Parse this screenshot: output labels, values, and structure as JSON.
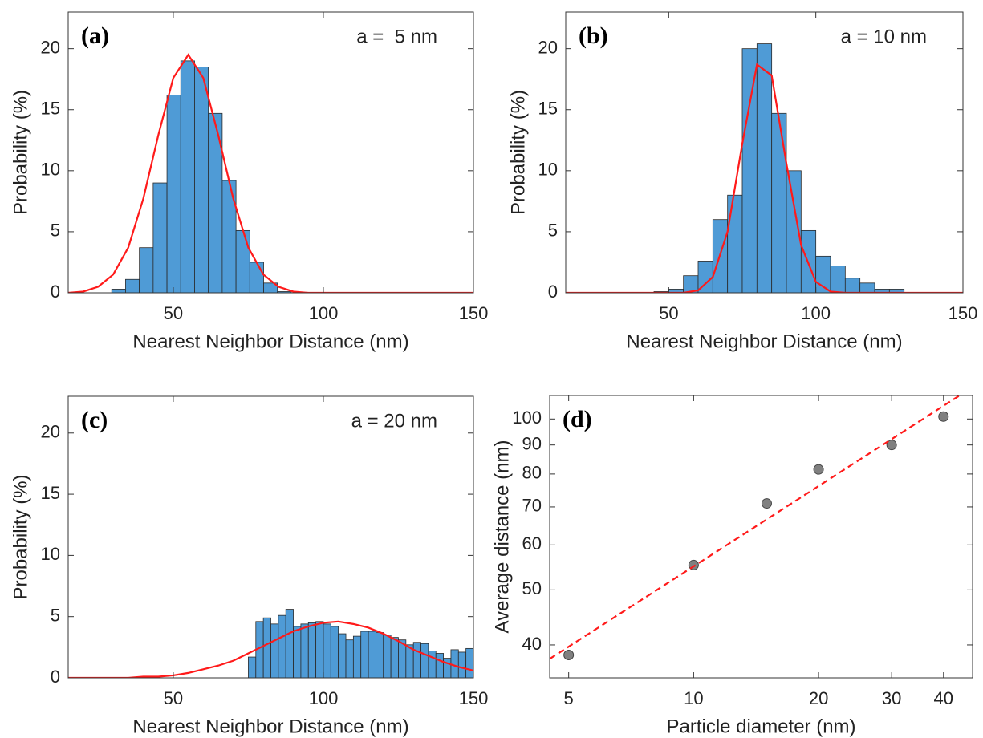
{
  "chart_data": [
    {
      "type": "histogram",
      "panel_label": "(a)",
      "annotation": "a =  5 nm",
      "xlabel": "Nearest Neighbor Distance (nm)",
      "ylabel": "Probability (%)",
      "bins": [
        29.5,
        34.1,
        38.7,
        43.3,
        47.9,
        52.5,
        57.1,
        61.7,
        66.3,
        70.9,
        75.5,
        80.1,
        84.7,
        89.3
      ],
      "counts": [
        0.3,
        1.1,
        3.7,
        9,
        16.2,
        19,
        18.5,
        14.7,
        9.2,
        5.1,
        2.5,
        0.8,
        0.1
      ],
      "color": "#4f9bd6",
      "fit": {
        "color": "#ff1a1a",
        "x": [
          15,
          20,
          25,
          30,
          35,
          40,
          45,
          50,
          55,
          60,
          65,
          70,
          75,
          80,
          85,
          90,
          95,
          100,
          105,
          110,
          115,
          120,
          125,
          130,
          135,
          140,
          145,
          150
        ],
        "values": [
          0,
          0.1,
          0.5,
          1.5,
          3.7,
          7.7,
          12.9,
          17.6,
          19.5,
          17.6,
          12.9,
          7.7,
          3.7,
          1.5,
          0.5,
          0.1,
          0,
          0,
          0,
          0,
          0,
          0,
          0,
          0,
          0,
          0,
          0,
          0
        ]
      },
      "xlim": [
        15,
        150
      ],
      "ylim": [
        0,
        23
      ],
      "xticks": [
        50,
        100,
        150
      ],
      "yticks": [
        0,
        5,
        10,
        15,
        20
      ]
    },
    {
      "type": "histogram",
      "panel_label": "(b)",
      "annotation": "a = 10 nm",
      "xlabel": "Nearest Neighbor Distance (nm)",
      "ylabel": "Probability (%)",
      "bins": [
        45,
        50,
        55,
        60,
        65,
        70,
        75,
        80,
        85,
        90,
        95,
        100,
        105,
        110,
        115,
        120,
        125,
        130
      ],
      "counts": [
        0.1,
        0.3,
        1.4,
        2.6,
        6,
        8,
        20,
        20.4,
        14.7,
        10,
        5.1,
        3,
        2.2,
        1.2,
        0.8,
        0.3,
        0.3
      ],
      "color": "#4f9bd6",
      "fit": {
        "color": "#ff1a1a",
        "x": [
          15,
          20,
          25,
          30,
          35,
          40,
          45,
          50,
          55,
          60,
          65,
          70,
          75,
          80,
          85,
          90,
          95,
          100,
          105,
          110,
          115,
          120,
          125,
          130,
          135,
          140,
          145,
          150
        ],
        "values": [
          0,
          0,
          0,
          0,
          0,
          0,
          0,
          0,
          0,
          0.2,
          1.3,
          5.0,
          12.2,
          18.7,
          17.8,
          10.6,
          3.9,
          0.9,
          0.1,
          0,
          0,
          0,
          0,
          0,
          0,
          0,
          0,
          0
        ]
      },
      "xlim": [
        15,
        150
      ],
      "ylim": [
        0,
        23
      ],
      "xticks": [
        50,
        100,
        150
      ],
      "yticks": [
        0,
        5,
        10,
        15,
        20
      ]
    },
    {
      "type": "histogram",
      "panel_label": "(c)",
      "annotation": "a = 20 nm",
      "xlabel": "Nearest Neighbor Distance (nm)",
      "ylabel": "Probability (%)",
      "bins": [
        75,
        77.5,
        80,
        82.5,
        85,
        87.5,
        90,
        92.5,
        95,
        97.5,
        100,
        102.5,
        105,
        107.5,
        110,
        112.5,
        115,
        117.5,
        120,
        122.5,
        125,
        127.5,
        130,
        132.5,
        135,
        137.5,
        140,
        142.5,
        145,
        147.5,
        150
      ],
      "counts": [
        1.7,
        4.6,
        4.9,
        4.4,
        5.1,
        5.6,
        4.2,
        4.4,
        4.5,
        4.6,
        4.4,
        4.2,
        3.6,
        3.1,
        3.4,
        3.8,
        3.8,
        3.7,
        3.5,
        3.3,
        3.1,
        2.7,
        2.9,
        2.8,
        2.2,
        2.0,
        1.6,
        2.3,
        2.1,
        2.4
      ],
      "color": "#4f9bd6",
      "fit": {
        "color": "#ff1a1a",
        "x": [
          15,
          20,
          25,
          30,
          35,
          40,
          45,
          50,
          55,
          60,
          65,
          70,
          75,
          80,
          85,
          90,
          95,
          100,
          105,
          110,
          115,
          120,
          125,
          130,
          135,
          140,
          145,
          150
        ],
        "values": [
          0,
          0,
          0,
          0,
          0,
          0.1,
          0.1,
          0.2,
          0.4,
          0.7,
          1.0,
          1.4,
          2.0,
          2.6,
          3.2,
          3.8,
          4.2,
          4.5,
          4.6,
          4.4,
          4.1,
          3.6,
          3.0,
          2.3,
          1.8,
          1.3,
          0.9,
          0.6
        ]
      },
      "xlim": [
        15,
        150
      ],
      "ylim": [
        0,
        23
      ],
      "xticks": [
        50,
        100,
        150
      ],
      "yticks": [
        0,
        5,
        10,
        15,
        20
      ]
    },
    {
      "type": "scatter",
      "panel_label": "(d)",
      "xlabel": "Particle diameter (nm)",
      "ylabel": "Average distance (nm)",
      "x": [
        5,
        10,
        15,
        20,
        30,
        40
      ],
      "values": [
        38.4,
        55.3,
        71,
        81.5,
        90,
        101
      ],
      "color": "#808080",
      "fit": {
        "color": "#ff1a1a",
        "dashed": true,
        "x": [
          4.5,
          47
        ],
        "values": [
          37.8,
          113.8
        ]
      },
      "xscale": "log",
      "yscale": "log",
      "xlim": [
        4.5,
        47
      ],
      "ylim": [
        35,
        110
      ],
      "xticks": [
        5,
        10,
        20,
        30,
        40
      ],
      "yticks": [
        40,
        50,
        60,
        70,
        80,
        90,
        100
      ]
    }
  ]
}
